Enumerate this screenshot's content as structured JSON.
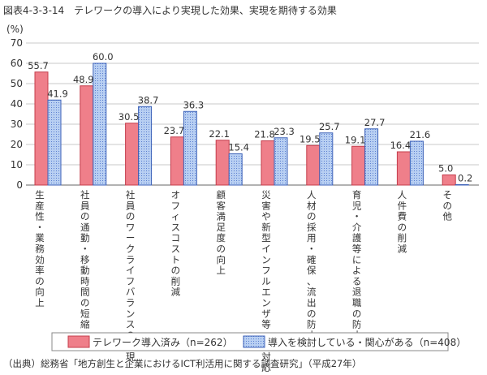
{
  "figure_title": "図表4-3-3-14　テレワークの導入により実現した効果、実現を期待する効果",
  "source_note": "（出典）総務省「地方創生と企業におけるICT利活用に関する調査研究」（平成27年）",
  "chart_data": {
    "type": "bar",
    "title": "",
    "ylabel": "(%)",
    "ylim": [
      0,
      70
    ],
    "yticks": [
      0,
      10,
      20,
      30,
      40,
      50,
      60,
      70
    ],
    "grid": true,
    "legend_position": "bottom",
    "categories": [
      "生産性・業務効率の向上",
      "社員の通勤・移動時間の短縮",
      "社員のワークライフバランスの実現",
      "オフィスコストの削減",
      "顧客満足度の向上",
      "災害や新型インフルエンザ等への対応",
      "人材の採用・確保、流出の防止",
      "育児・介護等による退職の防止",
      "人件費の削減",
      "その他"
    ],
    "series": [
      {
        "name": "テレワーク導入済み（n=262）",
        "values": [
          55.7,
          48.9,
          30.5,
          23.7,
          22.1,
          21.8,
          19.5,
          19.1,
          16.4,
          5.0
        ],
        "color": "#ef7f8a",
        "stroke": "#c43c4b"
      },
      {
        "name": "導入を検討している・関心がある（n=408）",
        "values": [
          41.9,
          60.0,
          38.7,
          36.3,
          15.4,
          23.3,
          25.7,
          27.7,
          21.6,
          0.2
        ],
        "color": "#a9c3ee",
        "stroke": "#3d62b8"
      }
    ]
  }
}
